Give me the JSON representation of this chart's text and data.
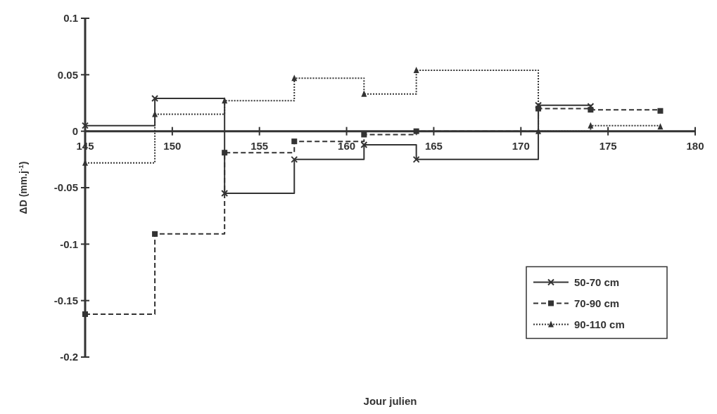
{
  "chart_data": {
    "type": "step",
    "xlabel": "Jour julien",
    "ylabel": "ΔD (mm.j$^{-1}$)",
    "xlim": [
      145,
      180
    ],
    "xticks": [
      145,
      150,
      155,
      160,
      165,
      170,
      175,
      180
    ],
    "ylim": [
      -0.2,
      0.1
    ],
    "yticks": [
      -0.2,
      -0.15,
      -0.1,
      -0.05,
      0,
      0.05,
      0.1
    ],
    "grid": false,
    "legend": "bottom right",
    "series": [
      {
        "name": "50-70 cm",
        "color": "#333333",
        "marker": "cross",
        "line_style": "solid",
        "x": [
          145,
          149,
          153,
          157,
          161,
          164,
          171,
          174
        ],
        "values": [
          0.005,
          0.029,
          -0.055,
          -0.025,
          -0.012,
          -0.025,
          0.023,
          0.022
        ]
      },
      {
        "name": "70-90 cm",
        "color": "#333333",
        "marker": "square",
        "line_style": "dashed",
        "x": [
          145,
          149,
          153,
          157,
          161,
          164,
          171,
          174,
          178
        ],
        "values": [
          -0.162,
          -0.091,
          -0.019,
          -0.009,
          -0.003,
          0,
          0.02,
          0.019,
          0.018
        ]
      },
      {
        "name": "90-110 cm",
        "color": "#333333",
        "marker": "triangle",
        "line_style": "dotted",
        "x": [
          145,
          149,
          153,
          157,
          161,
          164,
          171,
          174,
          178
        ],
        "values": [
          -0.028,
          0.015,
          0.027,
          0.047,
          0.033,
          0.054,
          0,
          0.005,
          0.004
        ]
      }
    ]
  }
}
